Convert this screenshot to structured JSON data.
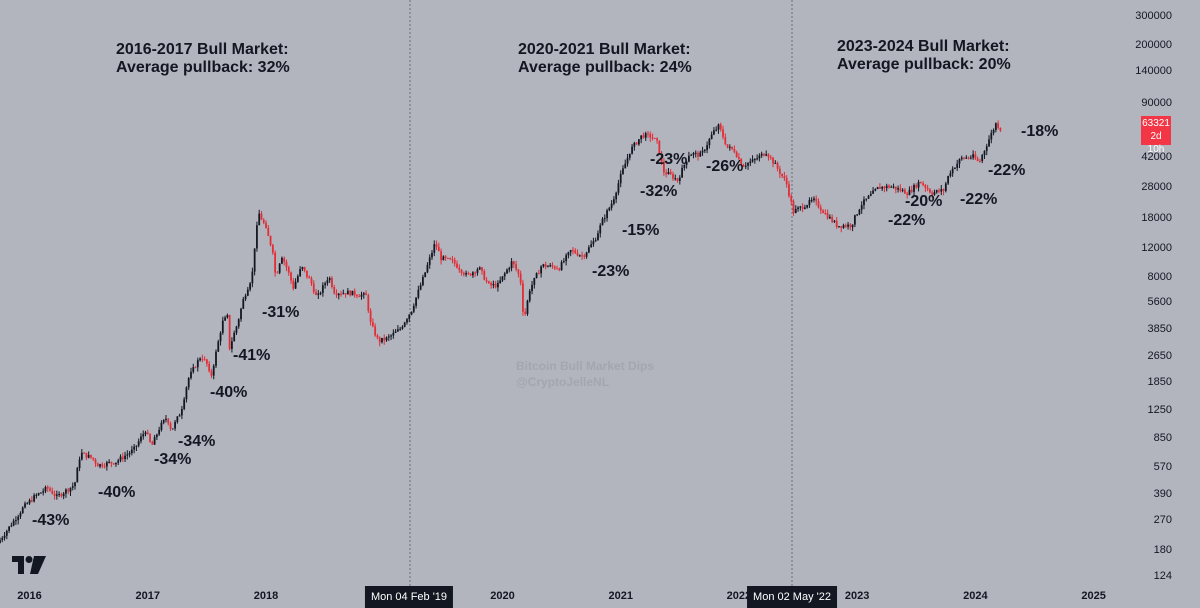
{
  "colors": {
    "background": "#b2b5be",
    "up": "#131722",
    "down": "#e12d36",
    "price_tag": "#f23645",
    "divider": "#6b6e77"
  },
  "chart_data": {
    "type": "candlestick",
    "y_scale": "log",
    "ylim": [
      110,
      380000
    ],
    "y_ticks": [
      124,
      180,
      270,
      390,
      570,
      850,
      1250,
      1850,
      2650,
      3850,
      5600,
      8000,
      12000,
      18000,
      28000,
      42000,
      63321,
      90000,
      140000,
      200000,
      300000
    ],
    "x_ticks": [
      "2016",
      "2017",
      "2018",
      "2019",
      "2020",
      "2021",
      "2022",
      "2023",
      "2024",
      "2025"
    ],
    "xlim": [
      2015.75,
      2025.35
    ],
    "price_path": [
      [
        2015.75,
        200
      ],
      [
        2015.97,
        330
      ],
      [
        2016.06,
        380
      ],
      [
        2016.17,
        430
      ],
      [
        2016.25,
        380
      ],
      [
        2016.4,
        450
      ],
      [
        2016.45,
        700
      ],
      [
        2016.55,
        650
      ],
      [
        2016.6,
        590
      ],
      [
        2016.75,
        620
      ],
      [
        2016.9,
        730
      ],
      [
        2017.0,
        960
      ],
      [
        2017.03,
        840
      ],
      [
        2017.05,
        760
      ],
      [
        2017.12,
        1000
      ],
      [
        2017.18,
        1150
      ],
      [
        2017.22,
        960
      ],
      [
        2017.3,
        1250
      ],
      [
        2017.36,
        1950
      ],
      [
        2017.42,
        2350
      ],
      [
        2017.47,
        2700
      ],
      [
        2017.52,
        2400
      ],
      [
        2017.55,
        1950
      ],
      [
        2017.6,
        2900
      ],
      [
        2017.65,
        4300
      ],
      [
        2017.7,
        4700
      ],
      [
        2017.71,
        3000
      ],
      [
        2017.78,
        4300
      ],
      [
        2017.83,
        6000
      ],
      [
        2017.88,
        7500
      ],
      [
        2017.9,
        8000
      ],
      [
        2017.93,
        14000
      ],
      [
        2017.96,
        19500
      ],
      [
        2018.0,
        17000
      ],
      [
        2018.04,
        14000
      ],
      [
        2018.08,
        11500
      ],
      [
        2018.1,
        8000
      ],
      [
        2018.15,
        11000
      ],
      [
        2018.2,
        9000
      ],
      [
        2018.25,
        7000
      ],
      [
        2018.32,
        9300
      ],
      [
        2018.4,
        7500
      ],
      [
        2018.45,
        6000
      ],
      [
        2018.55,
        8200
      ],
      [
        2018.6,
        6500
      ],
      [
        2018.72,
        6500
      ],
      [
        2018.87,
        6200
      ],
      [
        2018.9,
        4300
      ],
      [
        2018.97,
        3300
      ],
      [
        2019.05,
        3450
      ],
      [
        2019.15,
        3900
      ],
      [
        2019.25,
        5100
      ],
      [
        2019.35,
        8000
      ],
      [
        2019.45,
        13000
      ],
      [
        2019.5,
        10500
      ],
      [
        2019.6,
        10000
      ],
      [
        2019.72,
        8200
      ],
      [
        2019.82,
        9200
      ],
      [
        2019.9,
        7200
      ],
      [
        2019.98,
        7200
      ],
      [
        2020.1,
        10000
      ],
      [
        2020.17,
        8000
      ],
      [
        2020.2,
        4400
      ],
      [
        2020.25,
        6800
      ],
      [
        2020.35,
        9500
      ],
      [
        2020.5,
        9200
      ],
      [
        2020.6,
        11700
      ],
      [
        2020.7,
        10800
      ],
      [
        2020.8,
        13500
      ],
      [
        2020.87,
        18000
      ],
      [
        2020.95,
        23000
      ],
      [
        2021.02,
        33000
      ],
      [
        2021.1,
        47000
      ],
      [
        2021.2,
        58000
      ],
      [
        2021.28,
        57000
      ],
      [
        2021.33,
        52000
      ],
      [
        2021.38,
        35000
      ],
      [
        2021.45,
        33000
      ],
      [
        2021.5,
        31000
      ],
      [
        2021.6,
        45000
      ],
      [
        2021.7,
        44000
      ],
      [
        2021.8,
        60000
      ],
      [
        2021.85,
        66000
      ],
      [
        2021.92,
        49000
      ],
      [
        2021.98,
        47000
      ],
      [
        2022.05,
        38000
      ],
      [
        2022.15,
        41000
      ],
      [
        2022.25,
        46000
      ],
      [
        2022.33,
        38000
      ],
      [
        2022.42,
        30000
      ],
      [
        2022.48,
        20000
      ],
      [
        2022.58,
        22000
      ],
      [
        2022.65,
        23500
      ],
      [
        2022.75,
        19500
      ],
      [
        2022.85,
        16500
      ],
      [
        2022.97,
        16600
      ],
      [
        2023.05,
        22000
      ],
      [
        2023.2,
        28000
      ],
      [
        2023.3,
        28500
      ],
      [
        2023.45,
        26000
      ],
      [
        2023.55,
        30500
      ],
      [
        2023.65,
        26000
      ],
      [
        2023.75,
        27000
      ],
      [
        2023.8,
        34500
      ],
      [
        2023.9,
        42000
      ],
      [
        2024.0,
        43000
      ],
      [
        2024.05,
        39500
      ],
      [
        2024.12,
        52000
      ],
      [
        2024.2,
        70000
      ],
      [
        2024.22,
        63321
      ]
    ],
    "vertical_markers": [
      {
        "date": 2019.09,
        "label": "Mon 04 Feb '19"
      },
      {
        "date": 2022.33,
        "label": "Mon 02 May '22"
      }
    ],
    "last_price": {
      "value": "63321",
      "countdown": "2d 10h"
    },
    "annotations": [
      {
        "heading": "2016-2017 Bull Market:",
        "text": "Average pullback: 32%"
      },
      {
        "heading": "2020-2021 Bull Market:",
        "text": "Average pullback: 24%"
      },
      {
        "heading": "2023-2024 Bull Market:",
        "text": "Average pullback: 20%"
      }
    ],
    "dips": [
      "-43%",
      "-40%",
      "-34%",
      "-34%",
      "-40%",
      "-41%",
      "-31%",
      "-23%",
      "-15%",
      "-32%",
      "-23%",
      "-26%",
      "-22%",
      "-20%",
      "-22%",
      "-22%",
      "-18%"
    ],
    "watermark": {
      "line1": "Bitcoin Bull Market Dips",
      "line2": "@CryptoJelleNL"
    }
  }
}
